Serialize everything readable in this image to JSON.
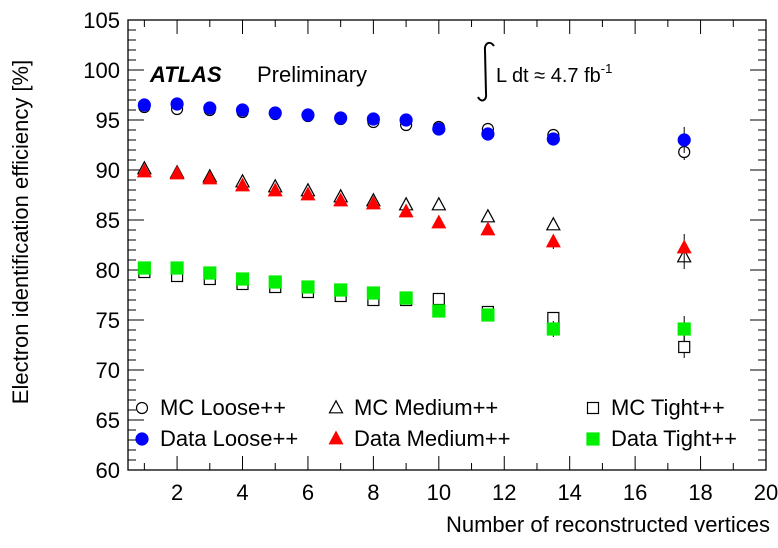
{
  "chart_data": {
    "type": "scatter",
    "experiment": "ATLAS",
    "status": "Preliminary",
    "luminosity": {
      "prefix": "L dt ≈ 4.7 fb",
      "superscript": "-1"
    },
    "xlabel": "Number of reconstructed vertices",
    "ylabel": "Electron identification efficiency [%]",
    "xlim": [
      0.5,
      20
    ],
    "ylim": [
      60,
      105
    ],
    "xticks": [
      2,
      4,
      6,
      8,
      10,
      12,
      14,
      16,
      18,
      20
    ],
    "yticks": [
      60,
      65,
      70,
      75,
      80,
      85,
      90,
      95,
      100,
      105
    ],
    "grid": false,
    "x": [
      1,
      2,
      3,
      4,
      5,
      6,
      7,
      8,
      9,
      10,
      11.5,
      13.5,
      17.5
    ],
    "series": [
      {
        "name": "MC Loose++",
        "marker": "open-circle",
        "color": "#000000",
        "values": [
          96.3,
          96.1,
          96.0,
          95.8,
          95.6,
          95.4,
          95.1,
          94.8,
          94.5,
          94.3,
          94.1,
          93.5,
          91.8
        ],
        "errors": [
          0.2,
          0.2,
          0.2,
          0.2,
          0.2,
          0.2,
          0.2,
          0.2,
          0.3,
          0.3,
          0.3,
          0.4,
          0.8
        ]
      },
      {
        "name": "Data Loose++",
        "marker": "filled-circle",
        "color": "#0000ff",
        "values": [
          96.5,
          96.6,
          96.2,
          96.0,
          95.7,
          95.5,
          95.2,
          95.1,
          95.0,
          94.1,
          93.6,
          93.1,
          93.0
        ],
        "errors": [
          0.2,
          0.2,
          0.2,
          0.2,
          0.2,
          0.2,
          0.2,
          0.2,
          0.3,
          0.3,
          0.4,
          0.5,
          1.3
        ]
      },
      {
        "name": "MC Medium++",
        "marker": "open-triangle",
        "color": "#000000",
        "values": [
          90.1,
          89.7,
          89.3,
          88.8,
          88.3,
          87.9,
          87.3,
          86.9,
          86.5,
          86.5,
          85.3,
          84.5,
          81.3
        ],
        "errors": [
          0.2,
          0.2,
          0.2,
          0.2,
          0.2,
          0.2,
          0.2,
          0.3,
          0.3,
          0.3,
          0.4,
          0.5,
          1.2
        ]
      },
      {
        "name": "Data Medium++",
        "marker": "filled-triangle",
        "color": "#ff0000",
        "values": [
          89.8,
          89.6,
          89.1,
          88.4,
          87.9,
          87.5,
          86.9,
          86.6,
          85.8,
          84.7,
          84.0,
          82.8,
          82.2
        ],
        "errors": [
          0.2,
          0.2,
          0.2,
          0.2,
          0.2,
          0.2,
          0.2,
          0.3,
          0.3,
          0.4,
          0.5,
          0.7,
          1.4
        ]
      },
      {
        "name": "MC Tight++",
        "marker": "open-square",
        "color": "#000000",
        "values": [
          79.8,
          79.4,
          79.1,
          78.6,
          78.3,
          77.8,
          77.4,
          77.0,
          77.0,
          77.1,
          75.8,
          75.2,
          72.3
        ],
        "errors": [
          0.2,
          0.2,
          0.2,
          0.2,
          0.2,
          0.2,
          0.3,
          0.3,
          0.3,
          0.4,
          0.5,
          0.6,
          1.1
        ]
      },
      {
        "name": "Data Tight++",
        "marker": "filled-square",
        "color": "#00ee00",
        "values": [
          80.2,
          80.2,
          79.7,
          79.1,
          78.8,
          78.3,
          78.0,
          77.7,
          77.2,
          75.9,
          75.5,
          74.1,
          74.1
        ],
        "errors": [
          0.2,
          0.2,
          0.2,
          0.2,
          0.2,
          0.2,
          0.3,
          0.3,
          0.3,
          0.4,
          0.5,
          0.8,
          1.3
        ]
      }
    ],
    "legend": {
      "placement": "bottom",
      "rows": [
        [
          "MC Loose++",
          "MC Medium++",
          "MC Tight++"
        ],
        [
          "Data Loose++",
          "Data Medium++",
          "Data Tight++"
        ]
      ]
    }
  }
}
